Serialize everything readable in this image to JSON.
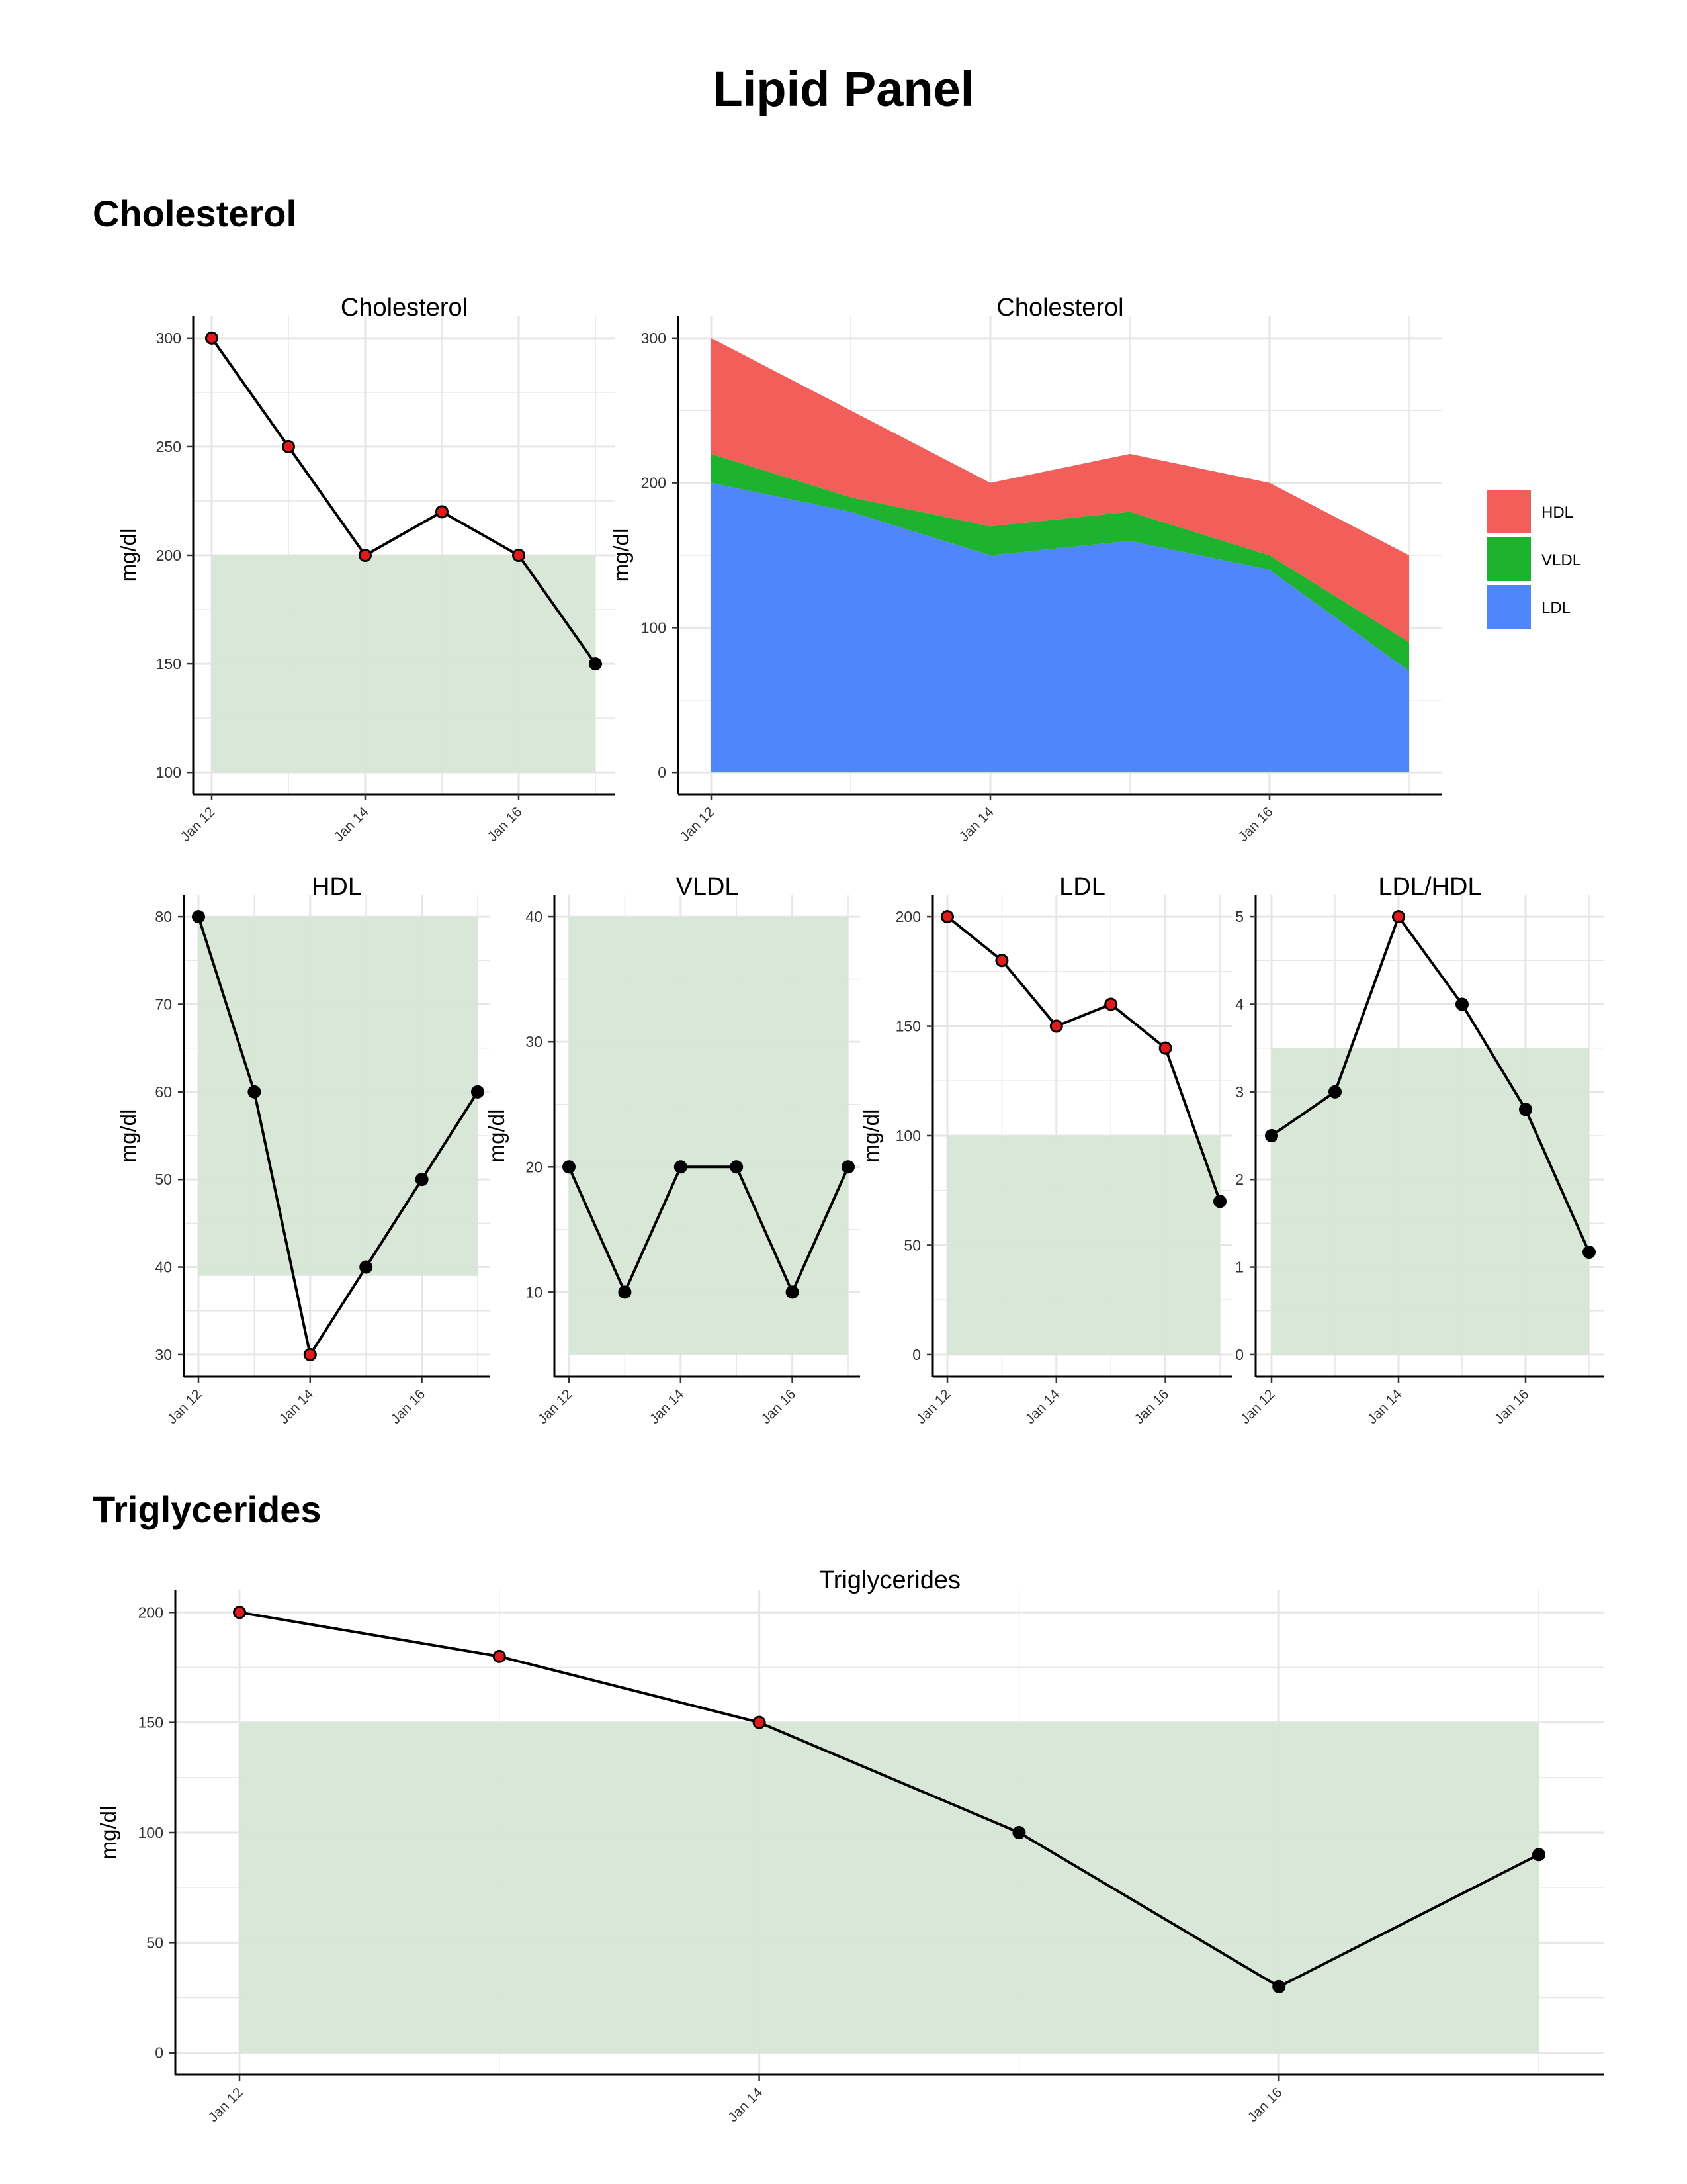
{
  "page": {
    "title": "Lipid Panel",
    "sections": {
      "cholesterol": "Cholesterol",
      "triglycerides": "Triglycerides"
    }
  },
  "colors": {
    "hdl": "#F25E5A",
    "vldl": "#1DB32E",
    "ldl": "#4F86FB",
    "range_band": "#D6E6D6",
    "point_out": "#E31A1C",
    "point_in": "#000000",
    "grid": "#E6E6E6"
  },
  "chart_data": [
    {
      "id": "total-cholesterol",
      "type": "line",
      "title": "Cholesterol",
      "xlabel": "",
      "ylabel": "mg/dl",
      "x": [
        0,
        1,
        2,
        3,
        4,
        5
      ],
      "x_ticks": [
        0,
        2,
        4
      ],
      "x_tick_labels": [
        "Jan 12",
        "Jan 14",
        "Jan 16"
      ],
      "values": [
        300,
        250,
        200,
        220,
        200,
        150
      ],
      "out_of_range": [
        true,
        true,
        true,
        true,
        true,
        false
      ],
      "reference_range": [
        100,
        200
      ],
      "ylim": [
        90,
        310
      ],
      "y_ticks": [
        100,
        150,
        200,
        250,
        300
      ]
    },
    {
      "id": "cholesterol-breakdown",
      "type": "area",
      "title": "Cholesterol",
      "xlabel": "",
      "ylabel": "mg/dl",
      "x": [
        0,
        1,
        2,
        3,
        4,
        5
      ],
      "x_ticks": [
        0,
        2,
        4
      ],
      "x_tick_labels": [
        "Jan 12",
        "Jan 14",
        "Jan 16"
      ],
      "stacked": true,
      "series": [
        {
          "name": "LDL",
          "color_key": "ldl",
          "values": [
            200,
            180,
            150,
            160,
            140,
            70
          ]
        },
        {
          "name": "VLDL",
          "color_key": "vldl",
          "values": [
            20,
            10,
            20,
            20,
            10,
            20
          ]
        },
        {
          "name": "HDL",
          "color_key": "hdl",
          "values": [
            80,
            60,
            30,
            40,
            50,
            60
          ]
        }
      ],
      "legend": [
        "HDL",
        "VLDL",
        "LDL"
      ],
      "legend_position": "right",
      "ylim": [
        -15,
        315
      ],
      "y_ticks": [
        0,
        100,
        200,
        300
      ]
    },
    {
      "id": "hdl",
      "type": "line",
      "title": "HDL",
      "xlabel": "",
      "ylabel": "mg/dl",
      "x": [
        0,
        1,
        2,
        3,
        4,
        5
      ],
      "x_ticks": [
        0,
        2,
        4
      ],
      "x_tick_labels": [
        "Jan 12",
        "Jan 14",
        "Jan 16"
      ],
      "values": [
        80,
        60,
        30,
        40,
        50,
        60
      ],
      "out_of_range": [
        false,
        false,
        true,
        false,
        false,
        false
      ],
      "reference_range": [
        39,
        80
      ],
      "ylim": [
        27.5,
        82.5
      ],
      "y_ticks": [
        30,
        40,
        50,
        60,
        70,
        80
      ]
    },
    {
      "id": "vldl",
      "type": "line",
      "title": "VLDL",
      "xlabel": "",
      "ylabel": "mg/dl",
      "x": [
        0,
        1,
        2,
        3,
        4,
        5
      ],
      "x_ticks": [
        0,
        2,
        4
      ],
      "x_tick_labels": [
        "Jan 12",
        "Jan 14",
        "Jan 16"
      ],
      "values": [
        20,
        10,
        20,
        20,
        10,
        20
      ],
      "out_of_range": [
        false,
        false,
        false,
        false,
        false,
        false
      ],
      "reference_range": [
        5,
        40
      ],
      "ylim": [
        3.25,
        41.75
      ],
      "y_ticks": [
        10,
        20,
        30,
        40
      ]
    },
    {
      "id": "ldl",
      "type": "line",
      "title": "LDL",
      "xlabel": "",
      "ylabel": "mg/dl",
      "x": [
        0,
        1,
        2,
        3,
        4,
        5
      ],
      "x_ticks": [
        0,
        2,
        4
      ],
      "x_tick_labels": [
        "Jan 12",
        "Jan 14",
        "Jan 16"
      ],
      "values": [
        200,
        180,
        150,
        160,
        140,
        70
      ],
      "out_of_range": [
        true,
        true,
        true,
        true,
        true,
        false
      ],
      "reference_range": [
        0,
        100
      ],
      "ylim": [
        -10,
        210
      ],
      "y_ticks": [
        0,
        50,
        100,
        150,
        200
      ]
    },
    {
      "id": "ldl-hdl",
      "type": "line",
      "title": "LDL/HDL",
      "xlabel": "",
      "ylabel": "",
      "x": [
        0,
        1,
        2,
        3,
        4,
        5
      ],
      "x_ticks": [
        0,
        2,
        4
      ],
      "x_tick_labels": [
        "Jan 12",
        "Jan 14",
        "Jan 16"
      ],
      "values": [
        2.5,
        3,
        5,
        4,
        2.8,
        1.17
      ],
      "out_of_range": [
        false,
        false,
        true,
        false,
        false,
        false
      ],
      "reference_range": [
        0,
        3.5
      ],
      "ylim": [
        -0.25,
        5.25
      ],
      "y_ticks": [
        0,
        1,
        2,
        3,
        4,
        5
      ]
    },
    {
      "id": "triglycerides",
      "type": "line",
      "title": "Triglycerides",
      "xlabel": "",
      "ylabel": "mg/dl",
      "x": [
        0,
        1,
        2,
        3,
        4,
        5
      ],
      "x_ticks": [
        0,
        2,
        4
      ],
      "x_tick_labels": [
        "Jan 12",
        "Jan 14",
        "Jan 16"
      ],
      "values": [
        200,
        180,
        150,
        100,
        30,
        90
      ],
      "out_of_range": [
        true,
        true,
        true,
        false,
        false,
        false
      ],
      "reference_range": [
        0,
        150
      ],
      "ylim": [
        -10,
        210
      ],
      "y_ticks": [
        0,
        50,
        100,
        150,
        200
      ]
    }
  ]
}
